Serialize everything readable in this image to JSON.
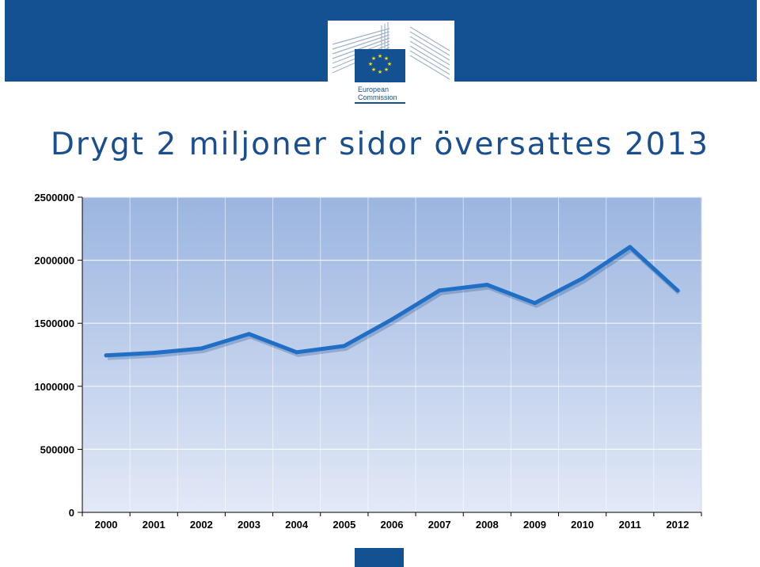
{
  "header": {
    "logo_text_line1": "European",
    "logo_text_line2": "Commission",
    "brand_color": "#145192"
  },
  "page_title": "Drygt 2 miljoner sidor översattes 2013",
  "chart_data": {
    "type": "line",
    "categories": [
      "2000",
      "2001",
      "2002",
      "2003",
      "2004",
      "2005",
      "2006",
      "2007",
      "2008",
      "2009",
      "2010",
      "2011",
      "2012"
    ],
    "series": [
      {
        "values": [
          1245000,
          1265000,
          1300000,
          1415000,
          1270000,
          1320000,
          1530000,
          1760000,
          1805000,
          1660000,
          1855000,
          2105000,
          1760000
        ]
      }
    ],
    "ylim": [
      0,
      2500000
    ],
    "yticks": [
      "0",
      "500000",
      "1000000",
      "1500000",
      "2000000",
      "2500000"
    ],
    "grid": true,
    "line_color": "#1f6fc6",
    "plot_bg_top": "#9bb5e0",
    "plot_bg_bottom": "#e3e9f7"
  }
}
